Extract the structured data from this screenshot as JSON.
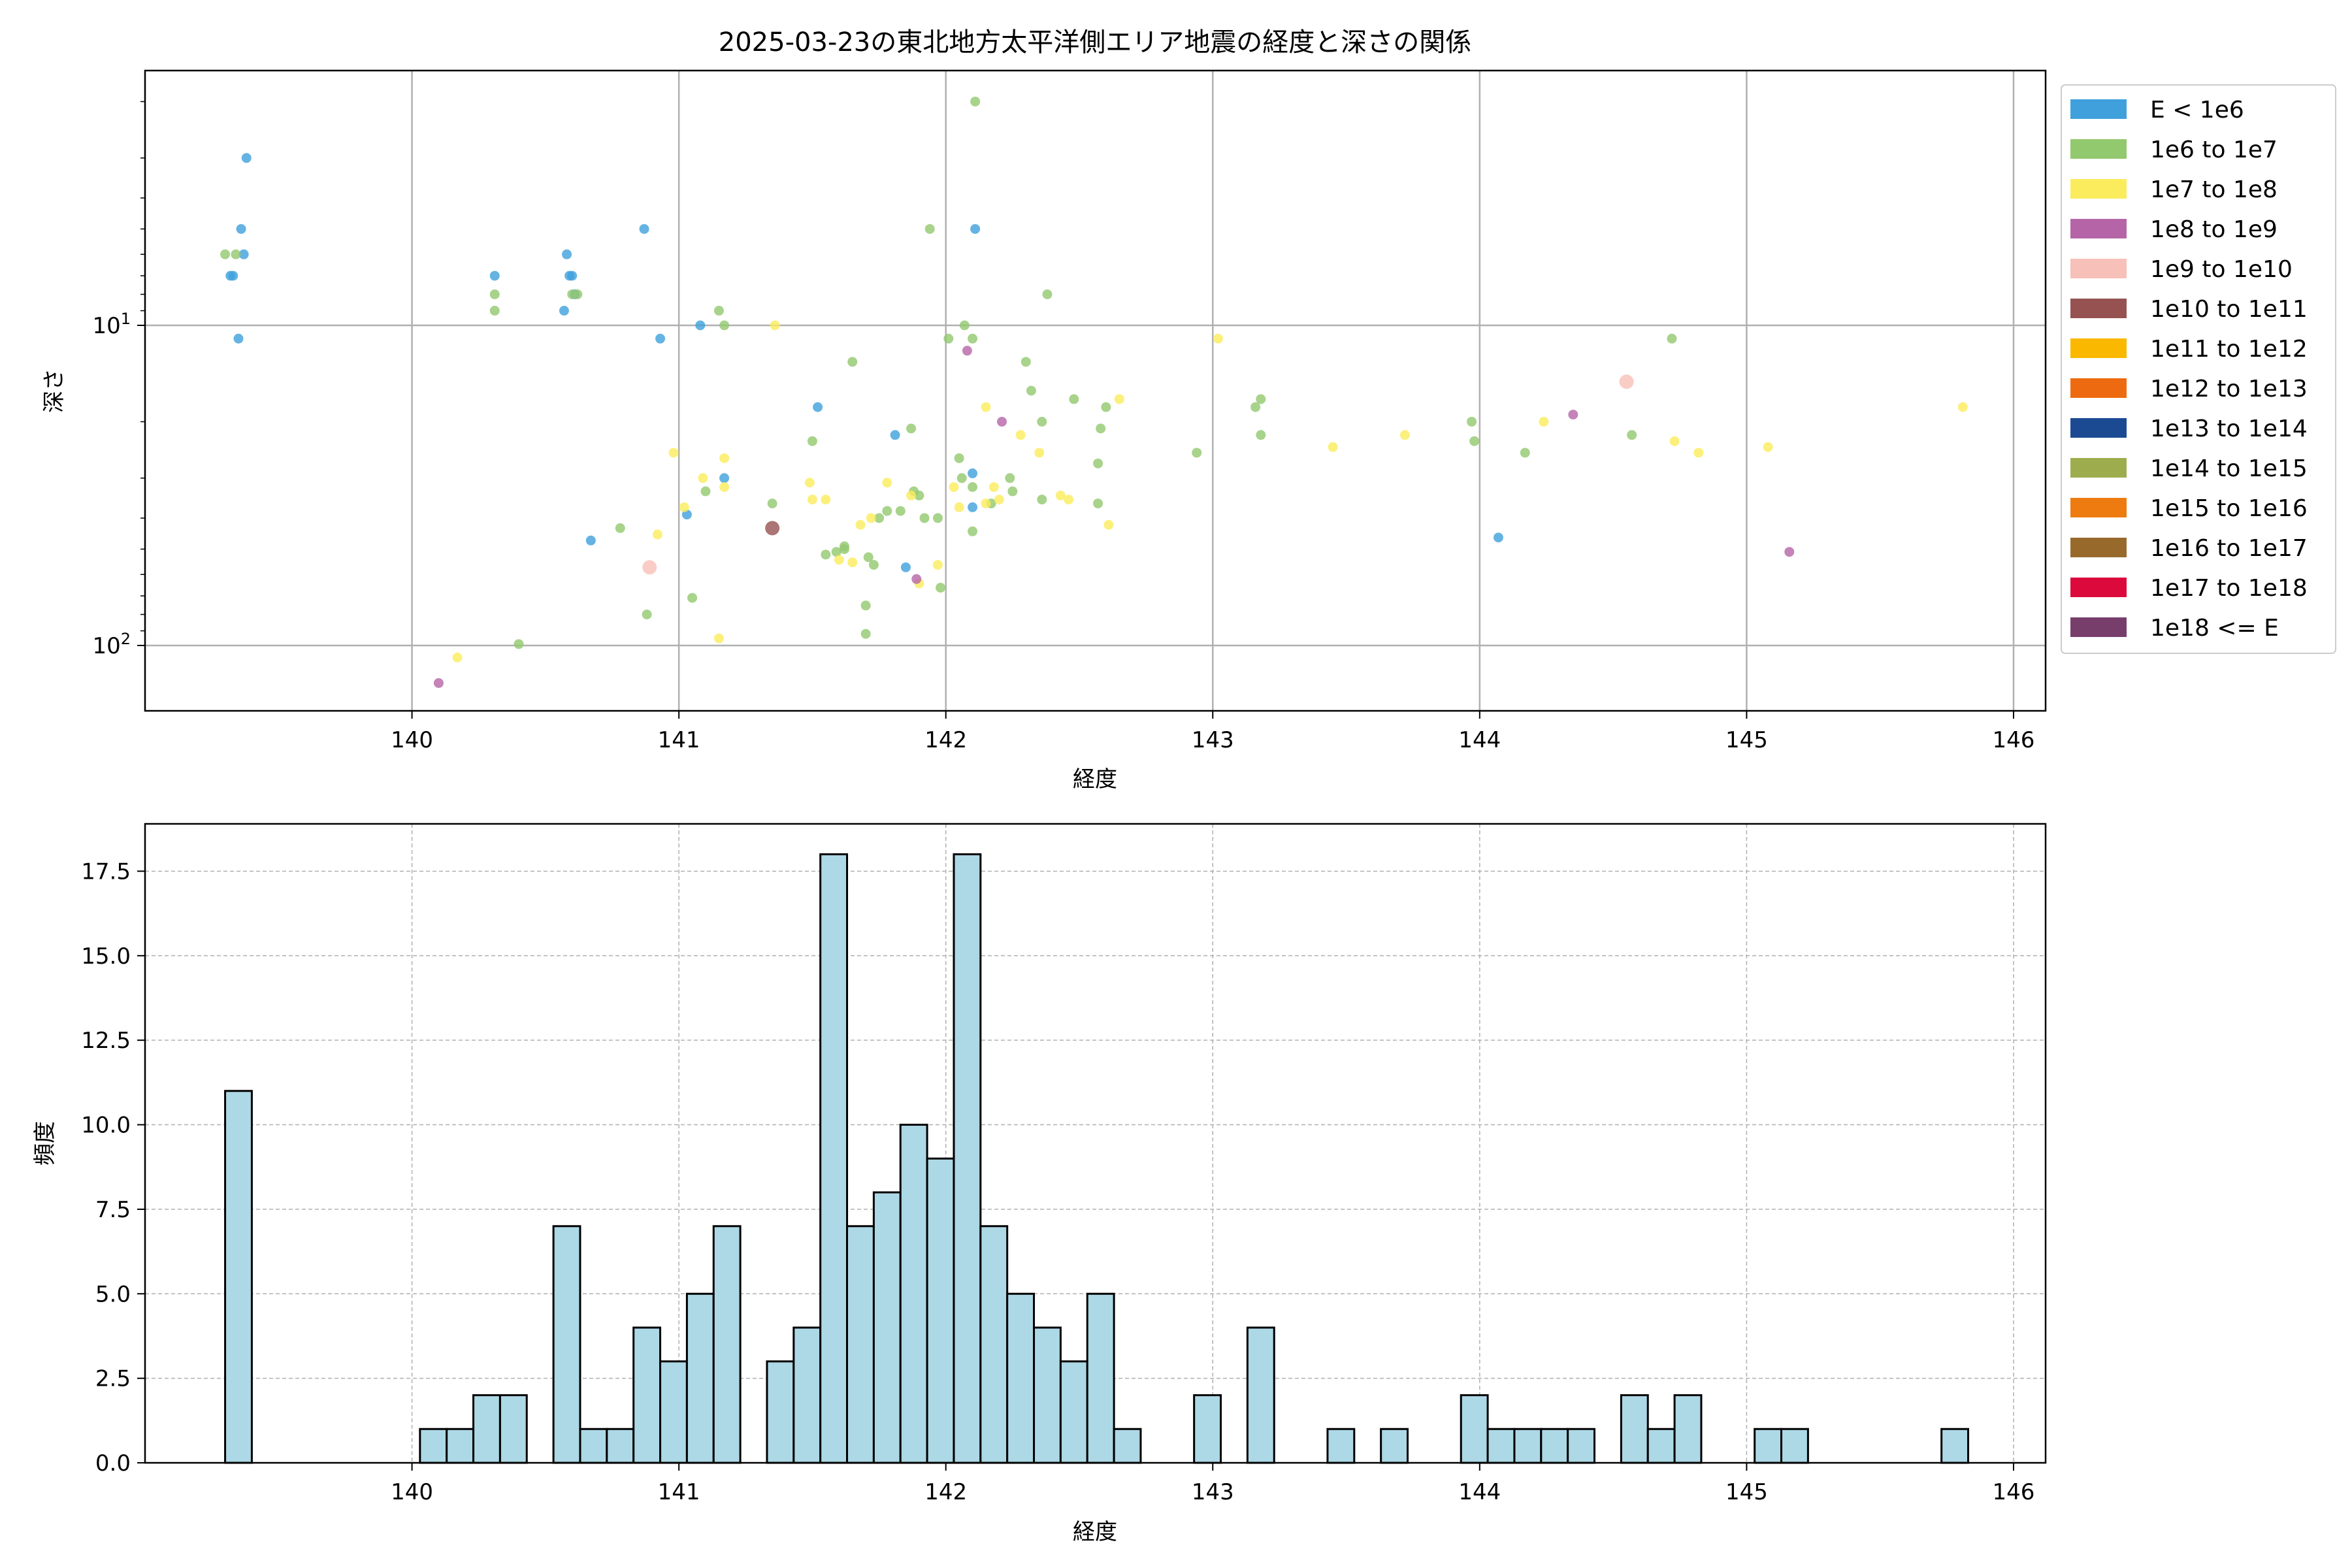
{
  "chart_data": [
    {
      "type": "scatter",
      "title": "2025-03-23の東北地方太平洋側エリア地震の経度と深さの関係",
      "xlabel": "経度",
      "ylabel": "深さ",
      "xlim": [
        139.0,
        146.12
      ],
      "ylim": [
        160,
        1.6
      ],
      "yscale": "log",
      "y_inverted": true,
      "grid": true,
      "xticks": [
        "140",
        "141",
        "142",
        "143",
        "144",
        "145",
        "146"
      ],
      "yticks": [
        {
          "value": 10,
          "base": "10",
          "exp": "1"
        },
        {
          "value": 100,
          "base": "10",
          "exp": "2"
        }
      ],
      "legend": {
        "placement": "outside-right",
        "entries": [
          {
            "label": "E < 1e6",
            "color": "#3fa0dc"
          },
          {
            "label": "1e6 to 1e7",
            "color": "#92c86e"
          },
          {
            "label": "1e7 to 1e8",
            "color": "#fbec5d"
          },
          {
            "label": "1e8 to 1e9",
            "color": "#b565a7"
          },
          {
            "label": "1e9 to 1e10",
            "color": "#f7c0b8"
          },
          {
            "label": "1e10 to 1e11",
            "color": "#955251"
          },
          {
            "label": "1e11 to 1e12",
            "color": "#fab800"
          },
          {
            "label": "1e12 to 1e13",
            "color": "#ee6a10"
          },
          {
            "label": "1e13 to 1e14",
            "color": "#1b4a93"
          },
          {
            "label": "1e14 to 1e15",
            "color": "#9dad4e"
          },
          {
            "label": "1e15 to 1e16",
            "color": "#ee7b10"
          },
          {
            "label": "1e16 to 1e17",
            "color": "#976a2c"
          },
          {
            "label": "1e17 to 1e18",
            "color": "#dc0a3c"
          },
          {
            "label": "1e18 <= E",
            "color": "#773e6c"
          }
        ]
      },
      "series": [
        {
          "color": "#3fa0dc",
          "points": [
            [
              139.38,
              3
            ],
            [
              139.36,
              5
            ],
            [
              139.37,
              6
            ],
            [
              139.33,
              7
            ],
            [
              139.32,
              7
            ],
            [
              139.35,
              11
            ],
            [
              140.87,
              5
            ],
            [
              140.58,
              6
            ],
            [
              140.59,
              7
            ],
            [
              140.6,
              7
            ],
            [
              140.61,
              8
            ],
            [
              140.57,
              9
            ],
            [
              140.31,
              7
            ],
            [
              141.08,
              10
            ],
            [
              140.93,
              11
            ],
            [
              141.52,
              18
            ],
            [
              141.81,
              22
            ],
            [
              141.17,
              30
            ],
            [
              141.03,
              39
            ],
            [
              140.67,
              47
            ],
            [
              141.85,
              57
            ],
            [
              142.1,
              29
            ],
            [
              142.1,
              37
            ],
            [
              142.11,
              5
            ],
            [
              144.07,
              46
            ]
          ]
        },
        {
          "color": "#92c86e",
          "points": [
            [
              139.3,
              6
            ],
            [
              139.34,
              6
            ],
            [
              140.31,
              8
            ],
            [
              140.31,
              9
            ],
            [
              140.6,
              8
            ],
            [
              140.62,
              8
            ],
            [
              141.15,
              9
            ],
            [
              141.17,
              10
            ],
            [
              141.1,
              33
            ],
            [
              141.35,
              36
            ],
            [
              141.5,
              23
            ],
            [
              141.65,
              13
            ],
            [
              141.59,
              51
            ],
            [
              141.62,
              50
            ],
            [
              141.55,
              52
            ],
            [
              141.62,
              49
            ],
            [
              141.71,
              53
            ],
            [
              141.73,
              56
            ],
            [
              141.75,
              40
            ],
            [
              141.78,
              38
            ],
            [
              141.83,
              38
            ],
            [
              141.87,
              21
            ],
            [
              141.88,
              33
            ],
            [
              141.9,
              34
            ],
            [
              141.92,
              40
            ],
            [
              141.97,
              40
            ],
            [
              141.98,
              66
            ],
            [
              141.7,
              75
            ],
            [
              141.7,
              92
            ],
            [
              141.94,
              5
            ],
            [
              142.11,
              2
            ],
            [
              142.01,
              11
            ],
            [
              142.07,
              10
            ],
            [
              142.1,
              11
            ],
            [
              142.05,
              26
            ],
            [
              142.06,
              30
            ],
            [
              142.1,
              32
            ],
            [
              142.1,
              44
            ],
            [
              142.17,
              36
            ],
            [
              142.24,
              30
            ],
            [
              142.25,
              33
            ],
            [
              142.3,
              13
            ],
            [
              142.32,
              16
            ],
            [
              142.36,
              20
            ],
            [
              142.36,
              35
            ],
            [
              142.38,
              8
            ],
            [
              142.48,
              17
            ],
            [
              142.57,
              27
            ],
            [
              142.58,
              21
            ],
            [
              142.6,
              18
            ],
            [
              142.57,
              36
            ],
            [
              142.94,
              25
            ],
            [
              143.16,
              18
            ],
            [
              143.18,
              17
            ],
            [
              143.18,
              22
            ],
            [
              143.97,
              20
            ],
            [
              143.98,
              23
            ],
            [
              144.17,
              25
            ],
            [
              144.57,
              22
            ],
            [
              144.72,
              11
            ],
            [
              140.78,
              43
            ],
            [
              140.4,
              99
            ],
            [
              140.88,
              80
            ],
            [
              141.05,
              71
            ]
          ]
        },
        {
          "color": "#fbec5d",
          "points": [
            [
              140.17,
              109
            ],
            [
              140.92,
              45
            ],
            [
              140.98,
              25
            ],
            [
              141.02,
              37
            ],
            [
              141.09,
              30
            ],
            [
              141.17,
              26
            ],
            [
              141.17,
              32
            ],
            [
              141.36,
              10
            ],
            [
              141.49,
              31
            ],
            [
              141.5,
              35
            ],
            [
              141.55,
              35
            ],
            [
              141.6,
              54
            ],
            [
              141.65,
              55
            ],
            [
              141.68,
              42
            ],
            [
              141.72,
              40
            ],
            [
              141.78,
              31
            ],
            [
              141.87,
              34
            ],
            [
              141.9,
              64
            ],
            [
              141.97,
              56
            ],
            [
              142.03,
              32
            ],
            [
              142.05,
              37
            ],
            [
              142.15,
              18
            ],
            [
              142.15,
              36
            ],
            [
              142.18,
              32
            ],
            [
              142.2,
              35
            ],
            [
              142.28,
              22
            ],
            [
              142.35,
              25
            ],
            [
              142.43,
              34
            ],
            [
              142.46,
              35
            ],
            [
              142.61,
              42
            ],
            [
              142.65,
              17
            ],
            [
              143.02,
              11
            ],
            [
              143.45,
              24
            ],
            [
              143.72,
              22
            ],
            [
              144.24,
              20
            ],
            [
              144.73,
              23
            ],
            [
              144.82,
              25
            ],
            [
              145.08,
              24
            ],
            [
              145.81,
              18
            ],
            [
              141.15,
              95
            ]
          ]
        },
        {
          "color": "#b565a7",
          "points": [
            [
              140.1,
              131
            ],
            [
              142.08,
              12
            ],
            [
              142.21,
              20
            ],
            [
              141.89,
              62
            ],
            [
              144.35,
              19
            ],
            [
              145.16,
              51
            ]
          ]
        },
        {
          "color": "#f7c0b8",
          "points": [
            [
              140.89,
              57
            ],
            [
              144.55,
              15
            ]
          ]
        },
        {
          "color": "#955251",
          "points": [
            [
              141.35,
              43
            ]
          ]
        }
      ]
    },
    {
      "type": "bar",
      "title": "",
      "xlabel": "経度",
      "ylabel": "頻度",
      "xlim": [
        139.0,
        146.12
      ],
      "ylim": [
        0,
        18.9
      ],
      "grid": true,
      "bar_color": "#add8e6",
      "xticks": [
        "140",
        "141",
        "142",
        "143",
        "144",
        "145",
        "146"
      ],
      "yticks": [
        "0.0",
        "2.5",
        "5.0",
        "7.5",
        "10.0",
        "12.5",
        "15.0",
        "17.5"
      ],
      "bin_width": 0.1,
      "bins": [
        {
          "x": 139.3,
          "value": 11
        },
        {
          "x": 140.03,
          "value": 1
        },
        {
          "x": 140.13,
          "value": 1
        },
        {
          "x": 140.23,
          "value": 2
        },
        {
          "x": 140.33,
          "value": 2
        },
        {
          "x": 140.53,
          "value": 7
        },
        {
          "x": 140.63,
          "value": 1
        },
        {
          "x": 140.73,
          "value": 1
        },
        {
          "x": 140.83,
          "value": 4
        },
        {
          "x": 140.93,
          "value": 3
        },
        {
          "x": 141.03,
          "value": 5
        },
        {
          "x": 141.13,
          "value": 7
        },
        {
          "x": 141.33,
          "value": 3
        },
        {
          "x": 141.43,
          "value": 4
        },
        {
          "x": 141.53,
          "value": 18
        },
        {
          "x": 141.63,
          "value": 7
        },
        {
          "x": 141.73,
          "value": 8
        },
        {
          "x": 141.83,
          "value": 10
        },
        {
          "x": 141.93,
          "value": 9
        },
        {
          "x": 142.03,
          "value": 18
        },
        {
          "x": 142.13,
          "value": 7
        },
        {
          "x": 142.23,
          "value": 5
        },
        {
          "x": 142.33,
          "value": 4
        },
        {
          "x": 142.43,
          "value": 3
        },
        {
          "x": 142.53,
          "value": 5
        },
        {
          "x": 142.63,
          "value": 1
        },
        {
          "x": 142.93,
          "value": 2
        },
        {
          "x": 143.13,
          "value": 4
        },
        {
          "x": 143.43,
          "value": 1
        },
        {
          "x": 143.63,
          "value": 1
        },
        {
          "x": 143.93,
          "value": 2
        },
        {
          "x": 144.03,
          "value": 1
        },
        {
          "x": 144.13,
          "value": 1
        },
        {
          "x": 144.23,
          "value": 1
        },
        {
          "x": 144.33,
          "value": 1
        },
        {
          "x": 144.53,
          "value": 2
        },
        {
          "x": 144.63,
          "value": 1
        },
        {
          "x": 144.73,
          "value": 2
        },
        {
          "x": 145.03,
          "value": 1
        },
        {
          "x": 145.13,
          "value": 1
        },
        {
          "x": 145.73,
          "value": 1
        }
      ]
    }
  ]
}
